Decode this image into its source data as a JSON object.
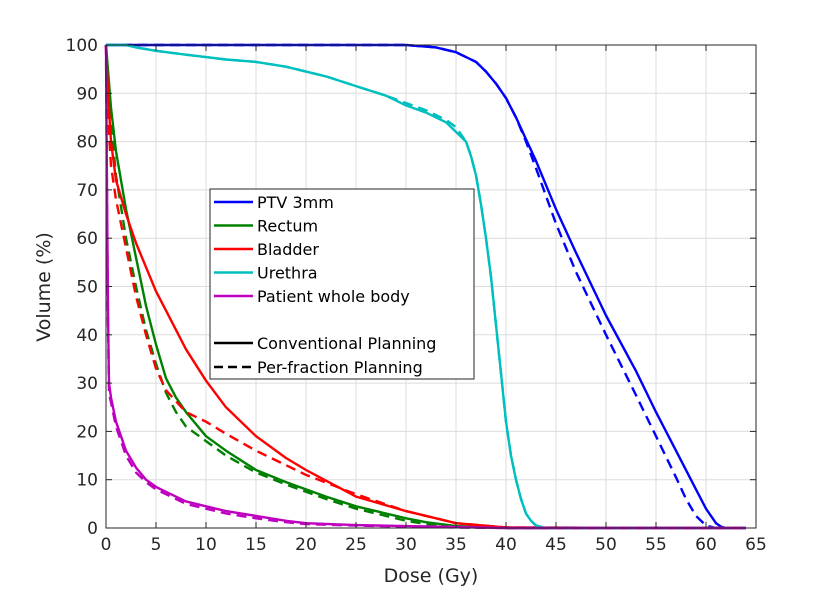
{
  "chart_data": {
    "type": "line",
    "xlabel": "Dose (Gy)",
    "ylabel": "Volume (%)",
    "xlim": [
      0,
      65
    ],
    "ylim": [
      0,
      100
    ],
    "xticks": [
      "0",
      "5",
      "10",
      "15",
      "20",
      "25",
      "30",
      "35",
      "40",
      "45",
      "50",
      "55",
      "60",
      "65"
    ],
    "yticks": [
      "0",
      "10",
      "20",
      "30",
      "40",
      "50",
      "60",
      "70",
      "80",
      "90",
      "100"
    ],
    "grid": true,
    "legend_position": "upper-left-center",
    "legend_styles": [
      {
        "name": "Conventional Planning",
        "dash": "solid"
      },
      {
        "name": "Per-fraction Planning",
        "dash": "dashed"
      }
    ],
    "series": [
      {
        "name": "PTV 3mm",
        "color": "#0000ff",
        "dash": "solid",
        "x": [
          0,
          25,
          30,
          33,
          35,
          37,
          38,
          39,
          40,
          41,
          42,
          43,
          45,
          47,
          50,
          53,
          55,
          57,
          59,
          60,
          61,
          61.5,
          62,
          64
        ],
        "y": [
          100,
          100,
          100,
          99.5,
          98.5,
          96.5,
          94.5,
          92,
          89,
          85,
          80.5,
          76,
          66,
          57,
          44,
          32.5,
          24,
          16,
          8,
          4,
          1,
          0.3,
          0,
          0
        ]
      },
      {
        "name": "PTV 3mm",
        "color": "#0000ff",
        "dash": "dashed",
        "x": [
          0,
          25,
          30,
          33,
          35,
          37,
          38,
          39,
          40,
          41,
          42,
          43,
          45,
          47,
          50,
          53,
          55,
          57,
          58,
          59,
          60,
          61,
          64
        ],
        "y": [
          100,
          100,
          100,
          99.5,
          98.5,
          96.5,
          94.5,
          92,
          89,
          85,
          80,
          74.5,
          63,
          53,
          40,
          27.5,
          19,
          10.5,
          6,
          2.5,
          0.5,
          0,
          0
        ]
      },
      {
        "name": "Rectum",
        "color": "#008000",
        "dash": "solid",
        "x": [
          0,
          0.5,
          1,
          2,
          3,
          4,
          5,
          6,
          7,
          8,
          10,
          12,
          15,
          18,
          20,
          22,
          25,
          28,
          30,
          32,
          35,
          40,
          64
        ],
        "y": [
          100,
          87,
          78,
          66,
          56,
          46,
          38,
          31,
          27,
          24,
          19,
          16,
          12,
          9.5,
          8,
          6.5,
          4.5,
          3,
          2,
          1.2,
          0.4,
          0,
          0
        ]
      },
      {
        "name": "Rectum",
        "color": "#008000",
        "dash": "dashed",
        "x": [
          0,
          0.5,
          1,
          2,
          3,
          4,
          5,
          6,
          7,
          8,
          10,
          12,
          15,
          18,
          20,
          22,
          25,
          28,
          30,
          32,
          35,
          40,
          64
        ],
        "y": [
          100,
          84,
          73,
          60,
          50,
          41,
          34,
          28,
          24,
          21,
          18,
          15,
          11.5,
          9,
          7.5,
          6,
          4,
          2.5,
          1.5,
          0.8,
          0.2,
          0,
          0
        ]
      },
      {
        "name": "Bladder",
        "color": "#ff0000",
        "dash": "solid",
        "x": [
          0,
          0.2,
          0.5,
          1,
          2,
          3,
          4,
          5,
          6,
          8,
          10,
          12,
          15,
          18,
          20,
          25,
          30,
          33,
          35,
          40,
          64
        ],
        "y": [
          100,
          90,
          80,
          72,
          65,
          59,
          54,
          49,
          45,
          37,
          30.5,
          25,
          19,
          14.5,
          12,
          6.5,
          3.5,
          2,
          1,
          0.1,
          0
        ]
      },
      {
        "name": "Bladder",
        "color": "#ff0000",
        "dash": "dashed",
        "x": [
          0,
          0.2,
          0.5,
          1,
          2,
          3,
          4,
          5,
          6,
          8,
          10,
          12,
          15,
          18,
          20,
          25,
          30,
          33,
          35,
          40,
          64
        ],
        "y": [
          100,
          85,
          75,
          68,
          58,
          48,
          40,
          33,
          28.5,
          24,
          22,
          19.5,
          16,
          13,
          11,
          7,
          3.5,
          2,
          1,
          0.1,
          0
        ]
      },
      {
        "name": "Urethra",
        "color": "#00bfbf",
        "dash": "solid",
        "x": [
          0,
          2,
          3,
          5,
          8,
          10,
          12,
          15,
          18,
          20,
          22,
          25,
          28,
          30,
          32,
          34,
          35,
          36,
          36.5,
          37,
          37.5,
          38,
          38.5,
          39,
          39.5,
          40,
          40.5,
          41,
          41.5,
          42,
          42.5,
          43,
          44,
          64
        ],
        "y": [
          100,
          100,
          99.5,
          98.8,
          98,
          97.5,
          97,
          96.5,
          95.5,
          94.5,
          93.5,
          91.5,
          89.5,
          87.5,
          86,
          84,
          82,
          80,
          77,
          73,
          67,
          60,
          52,
          42,
          32,
          22,
          15,
          10,
          6,
          3,
          1.5,
          0.5,
          0,
          0
        ]
      },
      {
        "name": "Urethra",
        "color": "#00bfbf",
        "dash": "dashed",
        "x": [
          0,
          2,
          3,
          5,
          8,
          10,
          12,
          15,
          18,
          20,
          22,
          25,
          28,
          30,
          32,
          34,
          35,
          36,
          36.5,
          37,
          37.5,
          38,
          38.5,
          39,
          39.5,
          40,
          40.5,
          41,
          41.5,
          42,
          42.5,
          43,
          44,
          64
        ],
        "y": [
          100,
          100,
          99.5,
          98.8,
          98,
          97.5,
          97,
          96.5,
          95.5,
          94.5,
          93.5,
          91.5,
          89.5,
          88,
          86.5,
          84.5,
          83,
          80,
          77,
          73,
          67,
          60,
          52,
          42,
          32,
          22,
          15,
          10,
          6,
          3,
          1.5,
          0.5,
          0,
          0
        ]
      },
      {
        "name": "Patient whole body",
        "color": "#bf00bf",
        "dash": "solid",
        "x": [
          0,
          0.1,
          0.2,
          0.3,
          0.5,
          1,
          2,
          3,
          4,
          5,
          6,
          8,
          10,
          12,
          15,
          18,
          20,
          25,
          30,
          35,
          40,
          64
        ],
        "y": [
          100,
          70,
          45,
          30,
          27,
          22,
          16,
          12.5,
          10,
          8.5,
          7.5,
          5.5,
          4.5,
          3.5,
          2.5,
          1.5,
          1,
          0.6,
          0.4,
          0.2,
          0,
          0
        ]
      },
      {
        "name": "Patient whole body",
        "color": "#bf00bf",
        "dash": "dashed",
        "x": [
          0,
          0.1,
          0.2,
          0.3,
          0.5,
          1,
          2,
          3,
          4,
          5,
          6,
          8,
          10,
          12,
          15,
          18,
          20,
          25,
          30,
          35,
          40,
          64
        ],
        "y": [
          100,
          68,
          42,
          28,
          26,
          21,
          15,
          11.5,
          9.5,
          8,
          7,
          5,
          4,
          3,
          2,
          1.2,
          0.8,
          0.5,
          0.3,
          0.1,
          0,
          0
        ]
      }
    ]
  }
}
